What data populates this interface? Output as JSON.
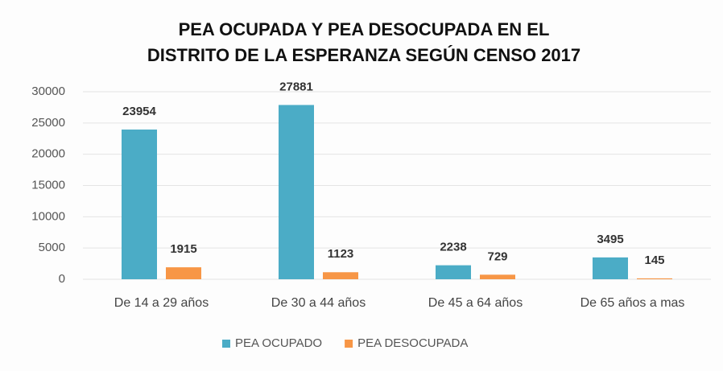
{
  "chart_data": {
    "type": "bar",
    "title": [
      "PEA OCUPADA Y  PEA DESOCUPADA EN EL",
      "DISTRITO DE LA ESPERANZA SEGÚN CENSO 2017"
    ],
    "categories": [
      "De 14 a 29 años",
      "De 30 a 44 años",
      "De 45 a 64 años",
      "De 65 años a mas"
    ],
    "series": [
      {
        "name": "PEA OCUPADO",
        "color": "#4bacc6",
        "values": [
          23954,
          27881,
          2238,
          3495
        ]
      },
      {
        "name": "PEA DESOCUPADA",
        "color": "#f79646",
        "values": [
          1915,
          1123,
          729,
          145
        ]
      }
    ],
    "ylim": [
      0,
      30000
    ],
    "yticks": [
      0,
      5000,
      10000,
      15000,
      20000,
      25000,
      30000
    ],
    "grid": true,
    "legend": "bottom"
  }
}
